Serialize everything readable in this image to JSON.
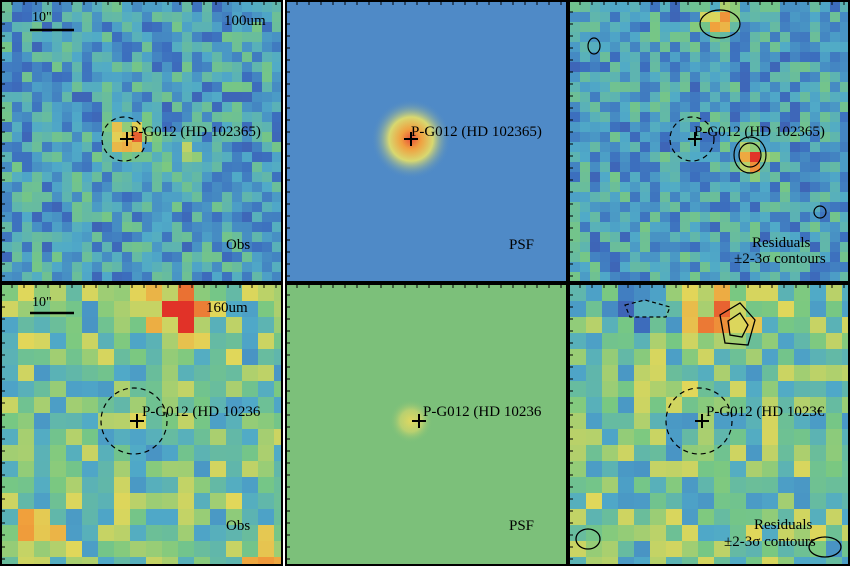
{
  "panels": [
    {
      "id": "obs-100",
      "label": "Obs",
      "band": "100um",
      "scale": "10\"",
      "target": "P-G012 (HD 102365)",
      "cmap": "blue-bg",
      "seed": 11,
      "source": "bright",
      "contours": false
    },
    {
      "id": "psf-100",
      "label": "PSF",
      "target": "P-G012 (HD 102365)",
      "cmap": "flat-blue",
      "psf": true,
      "contours": false
    },
    {
      "id": "res-100",
      "label": "Residuals",
      "sublabel": "±2-3σ contours",
      "target": "P-G012 (HD 102365)",
      "cmap": "blue-bg",
      "seed": 23,
      "source": "offset",
      "contours": true
    },
    {
      "id": "obs-160",
      "label": "Obs",
      "band": "160um",
      "scale": "10\"",
      "target": "P-G012 (HD 10236",
      "cmap": "green-bg",
      "seed": 37,
      "source": "none",
      "contours": false
    },
    {
      "id": "psf-160",
      "label": "PSF",
      "target": "P-G012 (HD 10236",
      "cmap": "flat-green",
      "psf": true,
      "contours": false
    },
    {
      "id": "res-160",
      "label": "Residuals",
      "sublabel": "±2-3σ contours",
      "target": "P-G012 (HD 1023€",
      "cmap": "green-bg",
      "seed": 51,
      "source": "none",
      "contours": true
    }
  ],
  "colors": {
    "blue_flat": "#4f8ac7",
    "green_flat": "#7cc07a",
    "frame": "#000000"
  }
}
